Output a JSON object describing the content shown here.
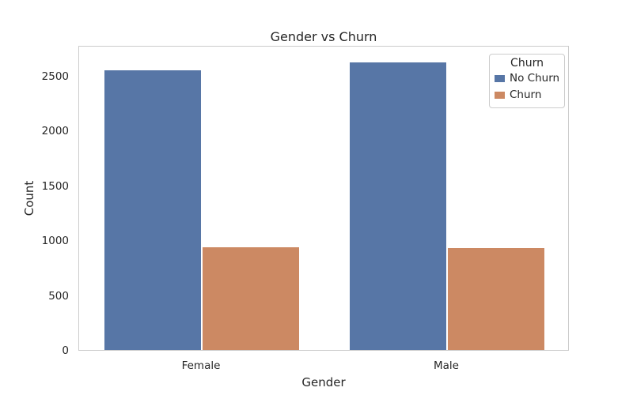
{
  "chart_data": {
    "type": "bar",
    "title": "Gender vs Churn",
    "xlabel": "Gender",
    "ylabel": "Count",
    "categories": [
      "Female",
      "Male"
    ],
    "series": [
      {
        "name": "No Churn",
        "color": "#5776a6",
        "values": [
          2549,
          2625
        ]
      },
      {
        "name": "Churn",
        "color": "#cc8963",
        "values": [
          939,
          930
        ]
      }
    ],
    "yticks": [
      0,
      500,
      1000,
      1500,
      2000,
      2500
    ],
    "ylim": [
      0,
      2780
    ],
    "grid": false,
    "legend": {
      "title": "Churn",
      "entries": [
        "No Churn",
        "Churn"
      ],
      "position": "upper right"
    }
  },
  "colors": {
    "text": "#262626",
    "spine": "#cccccc",
    "background": "#ffffff"
  }
}
